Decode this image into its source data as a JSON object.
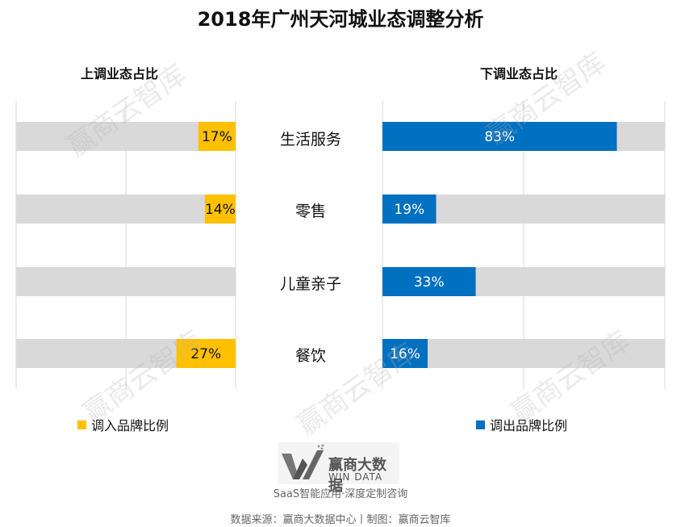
{
  "title": "2018年广州天河城业态调整分析",
  "watermark": "赢商云智库",
  "chart_data": [
    {
      "type": "bar",
      "orientation": "horizontal",
      "x_reversed": true,
      "subtitle": "上调业态占比",
      "categories": [
        "生活服务",
        "零售",
        "儿童亲子",
        "餐饮"
      ],
      "series": [
        {
          "name": "调入品牌比例",
          "values": [
            17,
            14,
            0,
            27
          ],
          "labels": [
            "17%",
            "14%",
            "",
            "27%"
          ],
          "color": "#FFC000"
        }
      ],
      "background_color": "#D9D9D9",
      "xlim": [
        0,
        100
      ],
      "grid": true,
      "legend": "bottom-left"
    },
    {
      "type": "bar",
      "orientation": "horizontal",
      "subtitle": "下调业态占比",
      "categories": [
        "生活服务",
        "零售",
        "儿童亲子",
        "餐饮"
      ],
      "series": [
        {
          "name": "调出品牌比例",
          "values": [
            83,
            19,
            33,
            16
          ],
          "labels": [
            "83%",
            "19%",
            "33%",
            "16%"
          ],
          "color": "#0070C0"
        }
      ],
      "background_color": "#D9D9D9",
      "xlim": [
        0,
        100
      ],
      "grid": true,
      "legend": "bottom-left"
    }
  ],
  "logo": {
    "cn": "赢商大数据",
    "en": "WIN DATA"
  },
  "slogan": "SaaS智能应用·深度定制咨询",
  "source": "数据来源：赢商大数据中心丨制图：赢商云智库"
}
